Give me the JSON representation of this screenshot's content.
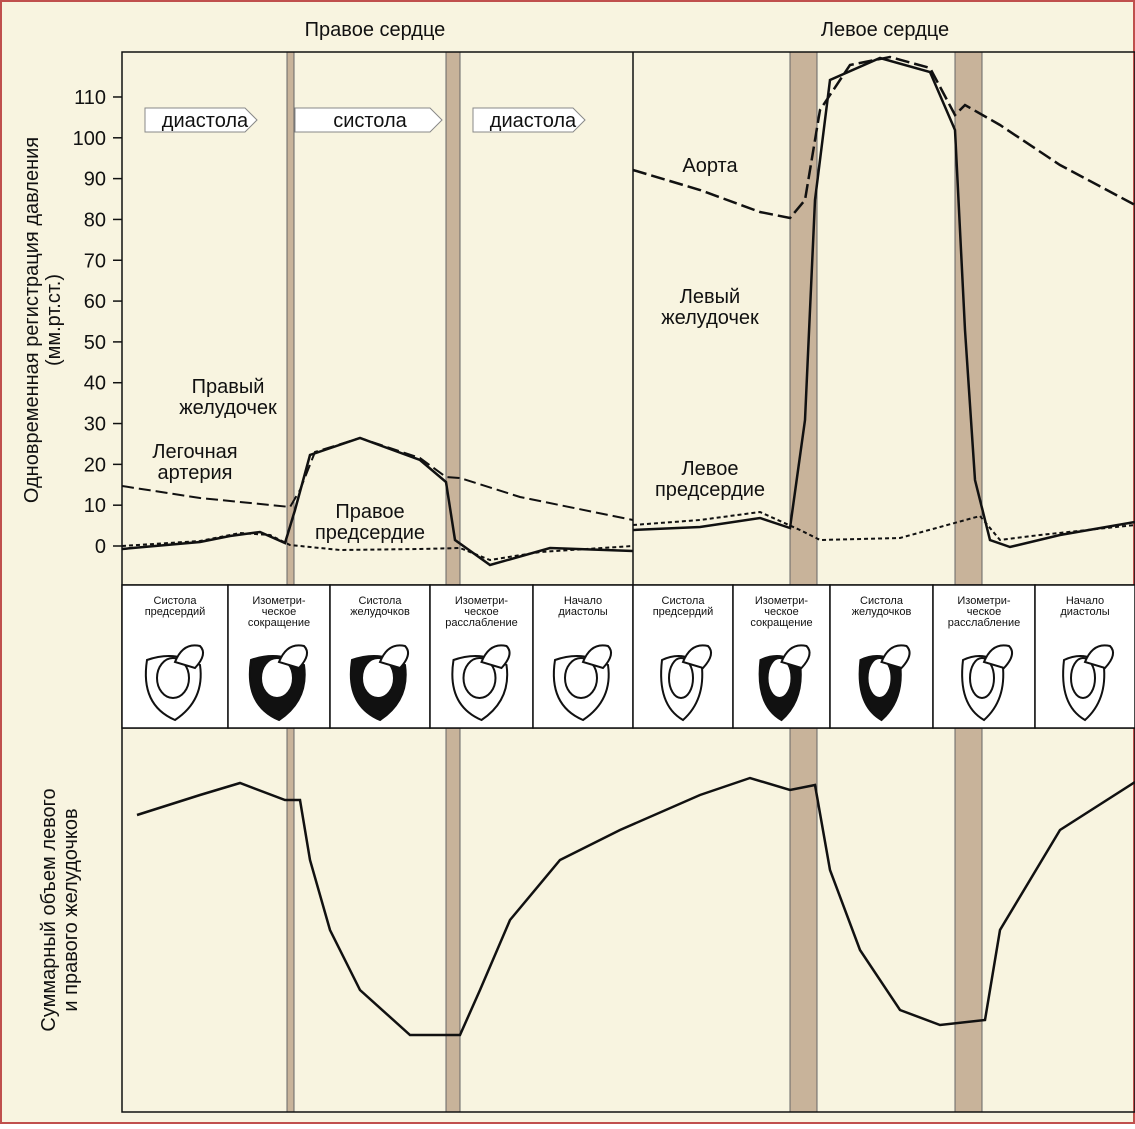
{
  "header": {
    "right_title": "Правое сердце",
    "left_title": "Левое сердце"
  },
  "pressure_axis": {
    "label_lines": [
      "Одновременная регистрация давления",
      "(мм.рт.ст.)"
    ],
    "ticks": [
      0,
      10,
      20,
      30,
      40,
      50,
      60,
      70,
      80,
      90,
      100,
      110
    ]
  },
  "phase_arrows": [
    "диастола",
    "систола",
    "диастола"
  ],
  "curve_labels": {
    "aorta": [
      "Аорта"
    ],
    "left_ventricle": [
      "Левый",
      "желудочек"
    ],
    "left_atrium": [
      "Левое",
      "предсердие"
    ],
    "right_ventricle": [
      "Правый",
      "желудочек"
    ],
    "pulmonary_artery": [
      "Легочная",
      "артерия"
    ],
    "right_atrium": [
      "Правое",
      "предсердие"
    ]
  },
  "phases": [
    [
      "Систола",
      "предсердий"
    ],
    [
      "Изометри-",
      "ческое",
      "сокращение"
    ],
    [
      "Систола",
      "желудочков"
    ],
    [
      "Изометри-",
      "ческое",
      "расслабление"
    ],
    [
      "Начало",
      "диастолы"
    ],
    [
      "Систола",
      "предсердий"
    ],
    [
      "Изометри-",
      "ческое",
      "сокращение"
    ],
    [
      "Систола",
      "желудочков"
    ],
    [
      "Изометри-",
      "ческое",
      "расслабление"
    ],
    [
      "Начало",
      "диастолы"
    ]
  ],
  "volume_axis": {
    "label_lines": [
      "Суммарный объем левого",
      "и правого желудочков"
    ]
  }
}
